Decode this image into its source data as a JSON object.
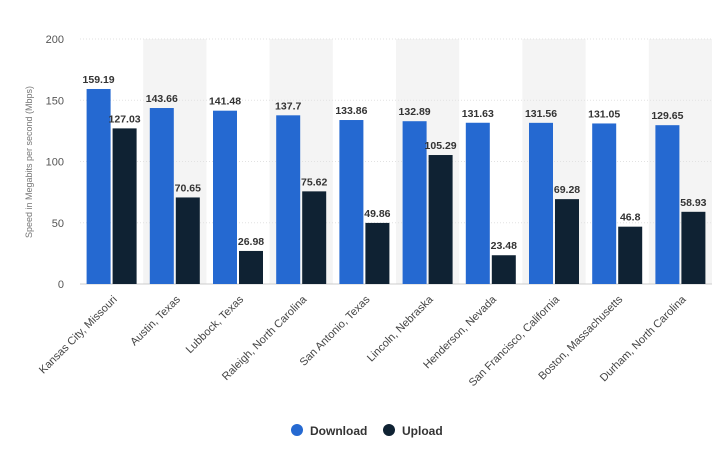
{
  "chart_data": {
    "type": "bar",
    "categories": [
      "Kansas City, Missouri",
      "Austin, Texas",
      "Lubbock, Texas",
      "Raleigh, North Carolina",
      "San Antonio, Texas",
      "Lincoln, Nebraska",
      "Henderson, Nevada",
      "San Francisco, California",
      "Boston, Massachusetts",
      "Durham, North Carolina"
    ],
    "series": [
      {
        "name": "Download",
        "color": "#2569d1",
        "values": [
          159.19,
          143.66,
          141.48,
          137.7,
          133.86,
          132.89,
          131.63,
          131.56,
          131.05,
          129.65
        ],
        "labels": [
          "159.19",
          "143.66",
          "141.48",
          "137.7",
          "133.86",
          "132.89",
          "131.63",
          "131.56",
          "131.05",
          "129.65"
        ]
      },
      {
        "name": "Upload",
        "color": "#0f2233",
        "values": [
          127.03,
          70.65,
          26.98,
          75.62,
          49.86,
          105.29,
          23.48,
          69.28,
          46.8,
          58.93
        ],
        "labels": [
          "127.03",
          "70.65",
          "26.98",
          "75.62",
          "49.86",
          "105.29",
          "23.48",
          "69.28",
          "46.8",
          "58.93"
        ]
      }
    ],
    "ylabel": "Speed in Megabits per second (Mbps)",
    "ylim": [
      0,
      200
    ],
    "yticks": [
      0,
      50,
      100,
      150,
      200
    ],
    "ytick_labels": [
      "0",
      "50",
      "100",
      "150",
      "200"
    ],
    "grid": true,
    "legend_position": "bottom-center",
    "band_color": "#f4f4f4"
  }
}
